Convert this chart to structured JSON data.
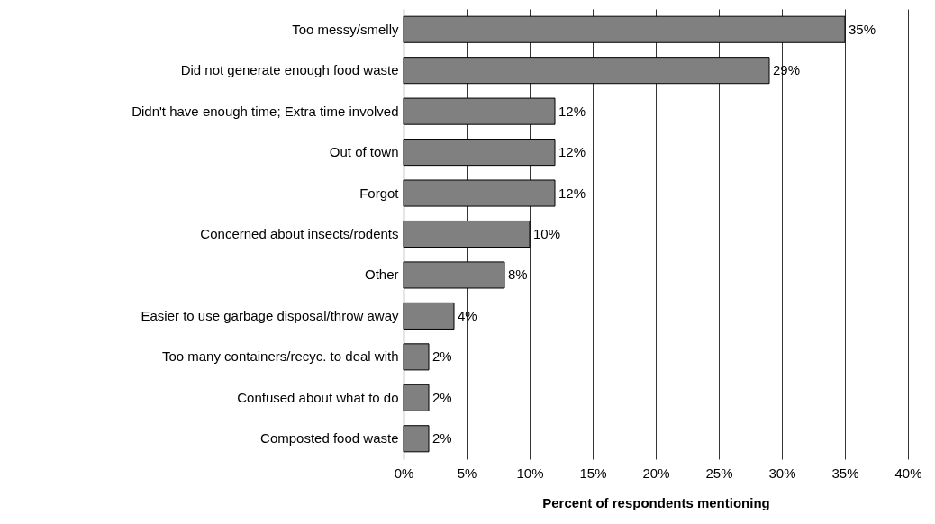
{
  "chart_data": {
    "type": "bar",
    "orientation": "horizontal",
    "xlabel": "Percent of respondents mentioning",
    "categories": [
      "Too messy/smelly",
      "Did not generate enough food waste",
      "Didn't have enough time; Extra time involved",
      "Out of town",
      "Forgot",
      "Concerned about insects/rodents",
      "Other",
      "Easier to use garbage disposal/throw away",
      "Too many containers/recyc. to deal with",
      "Confused about what to do",
      "Composted food waste"
    ],
    "values": [
      35,
      29,
      12,
      12,
      12,
      10,
      8,
      4,
      2,
      2,
      2
    ],
    "value_labels": [
      "35%",
      "29%",
      "12%",
      "12%",
      "12%",
      "10%",
      "8%",
      "4%",
      "2%",
      "2%",
      "2%"
    ],
    "color": "#808080",
    "xlim": [
      0,
      40
    ],
    "xticks": [
      {
        "value": 0,
        "label": "0%"
      },
      {
        "value": 5,
        "label": "5%"
      },
      {
        "value": 10,
        "label": "10%"
      },
      {
        "value": 15,
        "label": "15%"
      },
      {
        "value": 20,
        "label": "20%"
      },
      {
        "value": 25,
        "label": "25%"
      },
      {
        "value": 30,
        "label": "30%"
      },
      {
        "value": 35,
        "label": "35%"
      },
      {
        "value": 40,
        "label": "40%"
      }
    ],
    "grid": "x"
  }
}
